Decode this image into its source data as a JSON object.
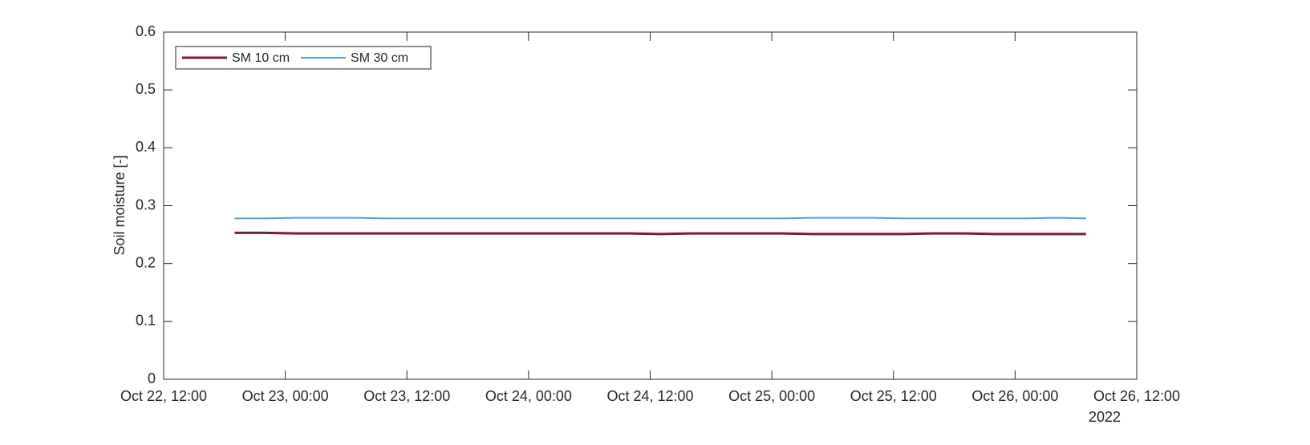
{
  "chart_data": {
    "type": "line",
    "ylabel": "Soil moisture [-]",
    "x": [
      "2022-10-22T19:00",
      "2022-10-22T22:00",
      "2022-10-23T01:00",
      "2022-10-23T04:00",
      "2022-10-23T07:00",
      "2022-10-23T10:00",
      "2022-10-23T13:00",
      "2022-10-23T16:00",
      "2022-10-23T19:00",
      "2022-10-23T22:00",
      "2022-10-24T01:00",
      "2022-10-24T04:00",
      "2022-10-24T07:00",
      "2022-10-24T10:00",
      "2022-10-24T13:00",
      "2022-10-24T16:00",
      "2022-10-24T19:00",
      "2022-10-24T22:00",
      "2022-10-25T01:00",
      "2022-10-25T04:00",
      "2022-10-25T07:00",
      "2022-10-25T10:00",
      "2022-10-25T13:00",
      "2022-10-25T16:00",
      "2022-10-25T19:00",
      "2022-10-25T22:00",
      "2022-10-26T01:00",
      "2022-10-26T04:00",
      "2022-10-26T07:00"
    ],
    "series": [
      {
        "name": "SM 10 cm",
        "color": "#7e1e35",
        "values": [
          0.253,
          0.253,
          0.252,
          0.252,
          0.252,
          0.252,
          0.252,
          0.252,
          0.252,
          0.252,
          0.252,
          0.252,
          0.252,
          0.252,
          0.251,
          0.252,
          0.252,
          0.252,
          0.252,
          0.251,
          0.251,
          0.251,
          0.251,
          0.252,
          0.252,
          0.251,
          0.251,
          0.251,
          0.251
        ]
      },
      {
        "name": "SM 30 cm",
        "color": "#4da3e0",
        "values": [
          0.278,
          0.278,
          0.279,
          0.279,
          0.279,
          0.278,
          0.278,
          0.278,
          0.278,
          0.278,
          0.278,
          0.278,
          0.278,
          0.278,
          0.278,
          0.278,
          0.278,
          0.278,
          0.278,
          0.279,
          0.279,
          0.279,
          0.278,
          0.278,
          0.278,
          0.278,
          0.278,
          0.279,
          0.278
        ]
      }
    ],
    "xlim": [
      "2022-10-22T12:00",
      "2022-10-26T12:00"
    ],
    "xticks": [
      {
        "value": "2022-10-22T12:00",
        "label": "Oct 22, 12:00"
      },
      {
        "value": "2022-10-23T00:00",
        "label": "Oct 23, 00:00"
      },
      {
        "value": "2022-10-23T12:00",
        "label": "Oct 23, 12:00"
      },
      {
        "value": "2022-10-24T00:00",
        "label": "Oct 24, 00:00"
      },
      {
        "value": "2022-10-24T12:00",
        "label": "Oct 24, 12:00"
      },
      {
        "value": "2022-10-25T00:00",
        "label": "Oct 25, 00:00"
      },
      {
        "value": "2022-10-25T12:00",
        "label": "Oct 25, 12:00"
      },
      {
        "value": "2022-10-26T00:00",
        "label": "Oct 26, 00:00"
      },
      {
        "value": "2022-10-26T12:00",
        "label": "Oct 26, 12:00"
      }
    ],
    "x_year_label": "2022",
    "ylim": [
      0,
      0.6
    ],
    "yticks": [
      0,
      0.1,
      0.2,
      0.3,
      0.4,
      0.5,
      0.6
    ],
    "grid": false,
    "legend": "northwest"
  }
}
